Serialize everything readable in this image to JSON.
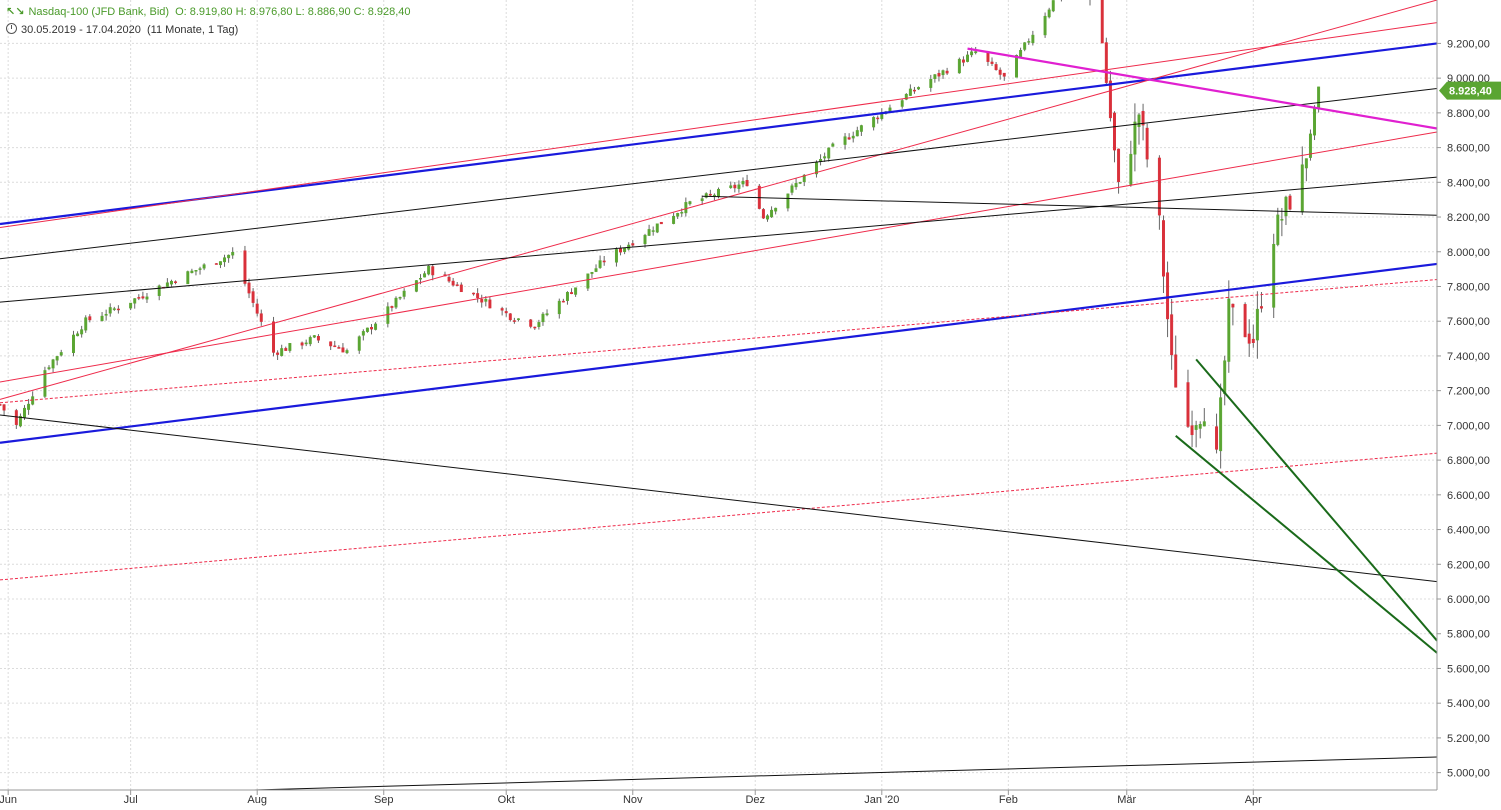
{
  "header": {
    "logo_glyph": "↖↘",
    "title": "Nasdaq-100 (JFD Bank, Bid)",
    "ohlc": "O: 8.919,80  H: 8.976,80  L: 8.886,90  C: 8.928,40",
    "range": "30.05.2019 - 17.04.2020",
    "period": "(11 Monate, 1 Tag)"
  },
  "colors": {
    "up": "#5aa532",
    "down": "#d9303a",
    "grid": "#dcdcdc",
    "blue_line": "#1a1adc",
    "red_line": "#ee2a4a",
    "magenta_line": "#e020d0",
    "green_line": "#1a6a1a",
    "black_line": "#111111",
    "last_price_bg": "#5aa532"
  },
  "chart_data": {
    "type": "candlestick",
    "instrument": "Nasdaq-100",
    "ylim": [
      4900,
      9450
    ],
    "yticks": [
      5000,
      5200,
      5400,
      5600,
      5800,
      6000,
      6200,
      6400,
      6600,
      6800,
      7000,
      7200,
      7400,
      7600,
      7800,
      8000,
      8200,
      8400,
      8600,
      8800,
      9000,
      9200
    ],
    "ytick_labels": [
      "5.000,00",
      "5.200,00",
      "5.400,00",
      "5.600,00",
      "5.800,00",
      "6.000,00",
      "6.200,00",
      "6.400,00",
      "6.600,00",
      "6.800,00",
      "7.000,00",
      "7.200,00",
      "7.400,00",
      "7.600,00",
      "7.800,00",
      "8.000,00",
      "8.200,00",
      "8.400,00",
      "8.600,00",
      "8.800,00",
      "9.000,00",
      "9.200,00"
    ],
    "last_price": 8928.4,
    "last_price_label": "8.928,40",
    "x_month_labels": [
      {
        "label": "Jun",
        "date": "2019-06-01"
      },
      {
        "label": "Jul",
        "date": "2019-07-01"
      },
      {
        "label": "Aug",
        "date": "2019-08-01"
      },
      {
        "label": "Sep",
        "date": "2019-09-01"
      },
      {
        "label": "Okt",
        "date": "2019-10-01"
      },
      {
        "label": "Nov",
        "date": "2019-11-01"
      },
      {
        "label": "Dez",
        "date": "2019-12-01"
      },
      {
        "label": "Jan '20",
        "date": "2020-01-01"
      },
      {
        "label": "Feb",
        "date": "2020-02-01"
      },
      {
        "label": "Mär",
        "date": "2020-03-01"
      },
      {
        "label": "Apr",
        "date": "2020-04-01"
      }
    ],
    "x_range": [
      "2019-05-30",
      "2020-05-16"
    ],
    "close_anchors": [
      {
        "date": "2019-05-30",
        "value": 7120
      },
      {
        "date": "2019-06-03",
        "value": 7000
      },
      {
        "date": "2019-06-10",
        "value": 7320
      },
      {
        "date": "2019-06-20",
        "value": 7600
      },
      {
        "date": "2019-06-28",
        "value": 7680
      },
      {
        "date": "2019-07-10",
        "value": 7820
      },
      {
        "date": "2019-07-26",
        "value": 7990
      },
      {
        "date": "2019-08-05",
        "value": 7420
      },
      {
        "date": "2019-08-15",
        "value": 7500
      },
      {
        "date": "2019-08-23",
        "value": 7430
      },
      {
        "date": "2019-09-12",
        "value": 7900
      },
      {
        "date": "2019-10-02",
        "value": 7630
      },
      {
        "date": "2019-10-08",
        "value": 7580
      },
      {
        "date": "2019-10-25",
        "value": 7950
      },
      {
        "date": "2019-11-15",
        "value": 8280
      },
      {
        "date": "2019-11-29",
        "value": 8400
      },
      {
        "date": "2019-12-03",
        "value": 8200
      },
      {
        "date": "2019-12-20",
        "value": 8600
      },
      {
        "date": "2020-01-10",
        "value": 8950
      },
      {
        "date": "2020-01-24",
        "value": 9150
      },
      {
        "date": "2020-01-31",
        "value": 9000
      },
      {
        "date": "2020-02-19",
        "value": 9700
      },
      {
        "date": "2020-02-24",
        "value": 9200
      },
      {
        "date": "2020-02-28",
        "value": 8350
      },
      {
        "date": "2020-03-04",
        "value": 8800
      },
      {
        "date": "2020-03-09",
        "value": 8150
      },
      {
        "date": "2020-03-12",
        "value": 7350
      },
      {
        "date": "2020-03-16",
        "value": 7000
      },
      {
        "date": "2020-03-20",
        "value": 7100
      },
      {
        "date": "2020-03-23",
        "value": 6800
      },
      {
        "date": "2020-03-26",
        "value": 7650
      },
      {
        "date": "2020-04-01",
        "value": 7500
      },
      {
        "date": "2020-04-06",
        "value": 8100
      },
      {
        "date": "2020-04-13",
        "value": 8450
      },
      {
        "date": "2020-04-17",
        "value": 8928
      }
    ],
    "trendlines": [
      {
        "style": "blue",
        "from": [
          "2019-05-30",
          8160
        ],
        "to": [
          "2020-05-16",
          9200
        ]
      },
      {
        "style": "blue",
        "from": [
          "2019-05-30",
          6900
        ],
        "to": [
          "2020-05-16",
          7930
        ]
      },
      {
        "style": "red",
        "from": [
          "2019-05-30",
          8140
        ],
        "to": [
          "2020-05-16",
          9320
        ]
      },
      {
        "style": "red",
        "from": [
          "2019-05-30",
          7150
        ],
        "to": [
          "2020-05-16",
          9450
        ]
      },
      {
        "style": "red",
        "from": [
          "2019-05-30",
          7250
        ],
        "to": [
          "2020-05-16",
          8690
        ]
      },
      {
        "style": "red-dash",
        "from": [
          "2019-05-30",
          7130
        ],
        "to": [
          "2020-05-16",
          7840
        ]
      },
      {
        "style": "red-dash",
        "from": [
          "2019-05-30",
          6110
        ],
        "to": [
          "2020-05-16",
          6840
        ]
      },
      {
        "style": "black",
        "from": [
          "2019-05-30",
          7960
        ],
        "to": [
          "2020-05-16",
          8940
        ]
      },
      {
        "style": "black",
        "from": [
          "2019-05-30",
          7710
        ],
        "to": [
          "2020-05-16",
          8430
        ]
      },
      {
        "style": "black",
        "from": [
          "2019-11-18",
          8320
        ],
        "to": [
          "2020-05-16",
          8210
        ]
      },
      {
        "style": "black",
        "from": [
          "2019-05-30",
          7060
        ],
        "to": [
          "2020-05-16",
          6100
        ]
      },
      {
        "style": "black",
        "from": [
          "2019-07-31",
          4900
        ],
        "to": [
          "2020-05-16",
          5090
        ]
      },
      {
        "style": "magenta",
        "from": [
          "2020-01-22",
          9170
        ],
        "to": [
          "2020-05-16",
          8710
        ]
      },
      {
        "style": "green",
        "from": [
          "2020-03-18",
          7380
        ],
        "to": [
          "2020-05-16",
          5760
        ]
      },
      {
        "style": "green",
        "from": [
          "2020-03-13",
          6940
        ],
        "to": [
          "2020-05-16",
          5690
        ]
      }
    ]
  }
}
